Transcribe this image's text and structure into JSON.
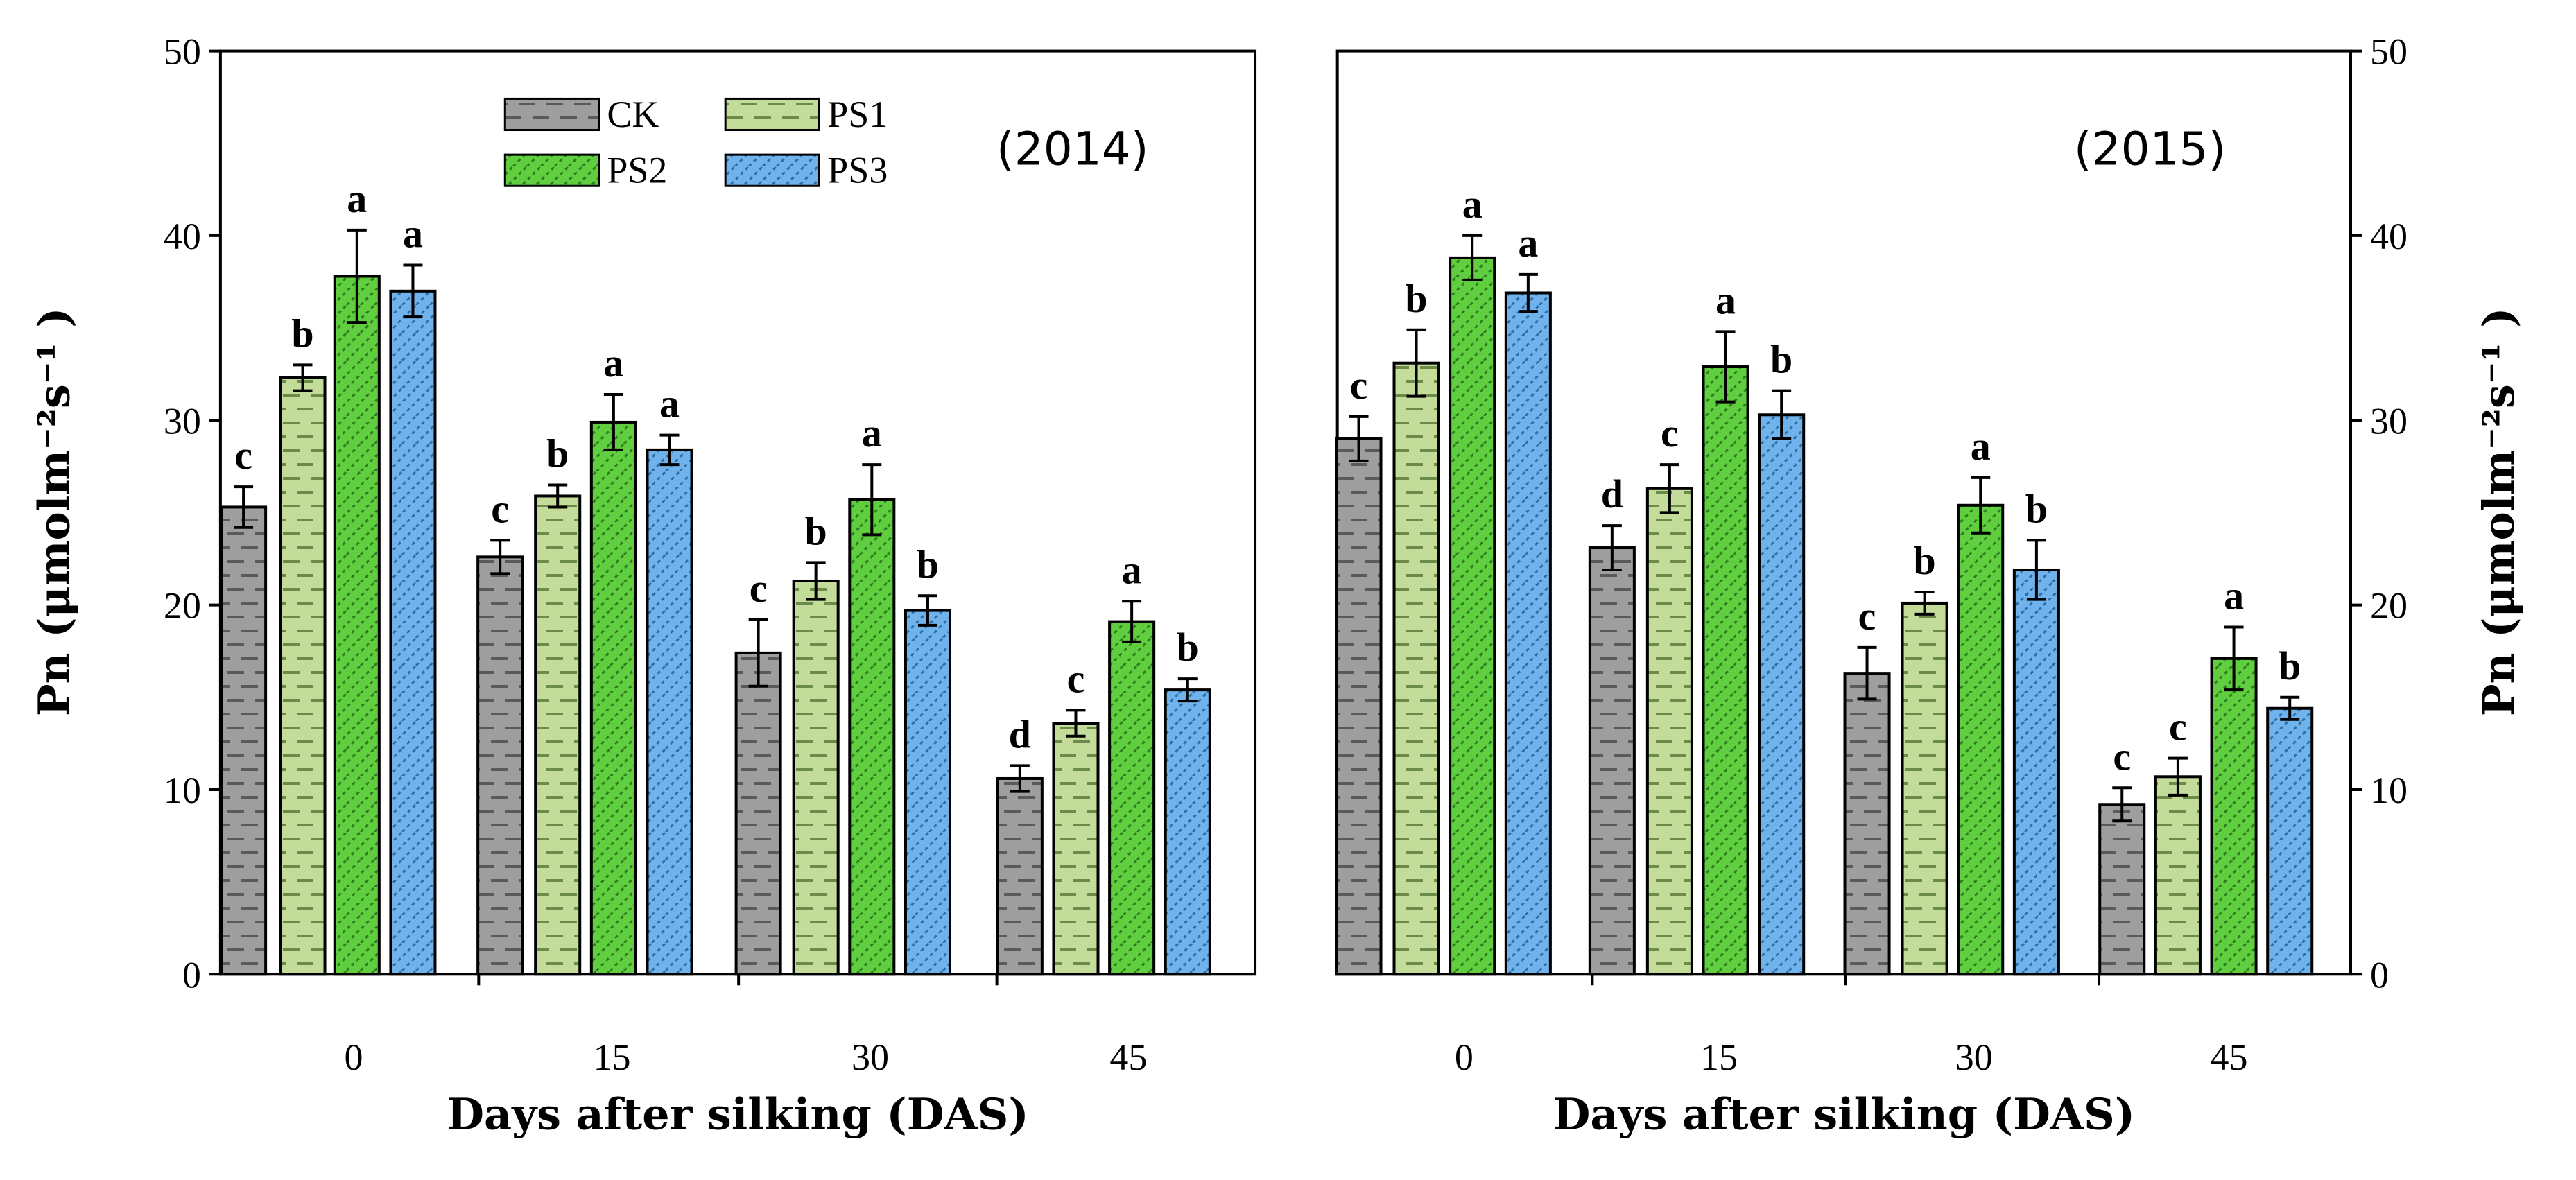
{
  "chart_data": [
    {
      "type": "bar",
      "title": "(2014)",
      "xlabel": "Days after silking (DAS)",
      "ylabel": "Pn (μmolm⁻²s⁻¹ )",
      "ylim": [
        0,
        50
      ],
      "yticks": [
        0,
        10,
        20,
        30,
        40,
        50
      ],
      "y_axis_side": "left",
      "grid": false,
      "legend_position": "top-left",
      "categories": [
        "0",
        "15",
        "30",
        "45"
      ],
      "series": [
        {
          "name": "CK",
          "values": [
            25.3,
            22.6,
            17.4,
            10.6
          ],
          "errors": [
            1.1,
            0.9,
            1.8,
            0.7
          ],
          "letters": [
            "c",
            "c",
            "c",
            "d"
          ]
        },
        {
          "name": "PS1",
          "values": [
            32.3,
            25.9,
            21.3,
            13.6
          ],
          "errors": [
            0.7,
            0.6,
            1.0,
            0.7
          ],
          "letters": [
            "b",
            "b",
            "b",
            "c"
          ]
        },
        {
          "name": "PS2",
          "values": [
            37.8,
            29.9,
            25.7,
            19.1
          ],
          "errors": [
            2.5,
            1.5,
            1.9,
            1.1
          ],
          "letters": [
            "a",
            "a",
            "a",
            "a"
          ]
        },
        {
          "name": "PS3",
          "values": [
            37.0,
            28.4,
            19.7,
            15.4
          ],
          "errors": [
            1.4,
            0.8,
            0.8,
            0.6
          ],
          "letters": [
            "a",
            "a",
            "b",
            "b"
          ]
        }
      ]
    },
    {
      "type": "bar",
      "title": "(2015)",
      "xlabel": "Days after silking (DAS)",
      "ylabel": "Pn (μmolm⁻²s⁻¹ )",
      "ylim": [
        0,
        50
      ],
      "yticks": [
        0,
        10,
        20,
        30,
        40,
        50
      ],
      "y_axis_side": "right",
      "grid": false,
      "categories": [
        "0",
        "15",
        "30",
        "45"
      ],
      "series": [
        {
          "name": "CK",
          "values": [
            29.0,
            23.1,
            16.3,
            9.2
          ],
          "errors": [
            1.2,
            1.2,
            1.4,
            0.9
          ],
          "letters": [
            "c",
            "d",
            "c",
            "c"
          ]
        },
        {
          "name": "PS1",
          "values": [
            33.1,
            26.3,
            20.1,
            10.7
          ],
          "errors": [
            1.8,
            1.3,
            0.6,
            1.0
          ],
          "letters": [
            "b",
            "c",
            "b",
            "c"
          ]
        },
        {
          "name": "PS2",
          "values": [
            38.8,
            32.9,
            25.4,
            17.1
          ],
          "errors": [
            1.2,
            1.9,
            1.5,
            1.7
          ],
          "letters": [
            "a",
            "a",
            "a",
            "a"
          ]
        },
        {
          "name": "PS3",
          "values": [
            36.9,
            30.3,
            21.9,
            14.4
          ],
          "errors": [
            1.0,
            1.3,
            1.6,
            0.6
          ],
          "letters": [
            "a",
            "b",
            "b",
            "b"
          ]
        }
      ]
    }
  ],
  "series_styles": [
    {
      "name": "CK",
      "fill": "#9e9e9e",
      "pattern_mark": "#5a5a5a",
      "pattern": "dash"
    },
    {
      "name": "PS1",
      "fill": "#c3dc9a",
      "pattern_mark": "#6c8a4a",
      "pattern": "dash"
    },
    {
      "name": "PS2",
      "fill": "#5fcf3f",
      "pattern_mark": "#2f7a1e",
      "pattern": "dotted-diagonal"
    },
    {
      "name": "PS3",
      "fill": "#6fb2ec",
      "pattern_mark": "#2e6da3",
      "pattern": "dotted-diagonal"
    }
  ]
}
